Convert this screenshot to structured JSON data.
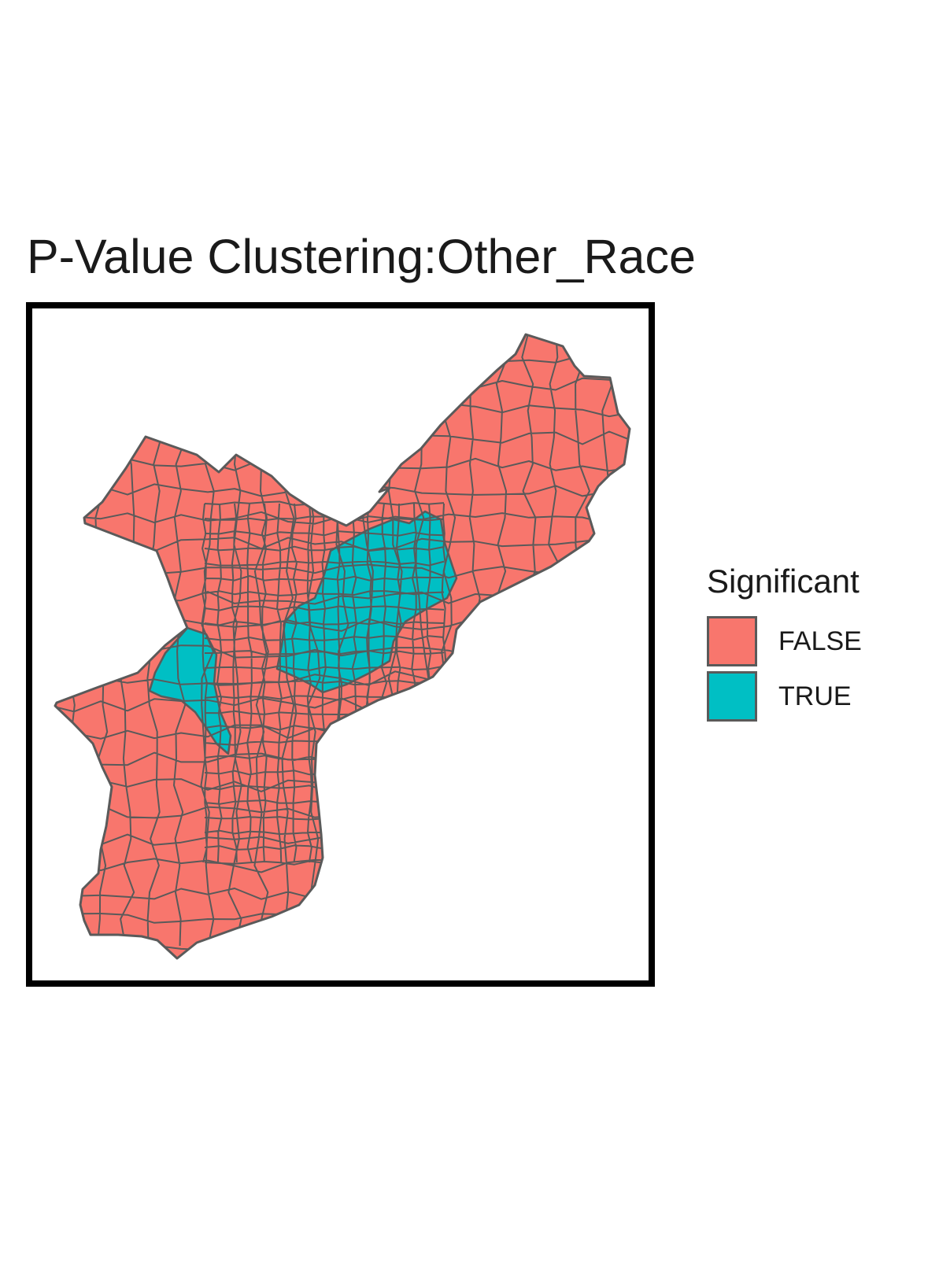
{
  "map": {
    "title": "P-Value Clustering:Other_Race",
    "variable": "Significant",
    "boundary_color": "#5a5a5a",
    "legend": {
      "title": "Significant",
      "items": [
        {
          "label": "FALSE",
          "color": "#F8766D"
        },
        {
          "label": "TRUE",
          "color": "#00BFC4"
        }
      ]
    }
  }
}
